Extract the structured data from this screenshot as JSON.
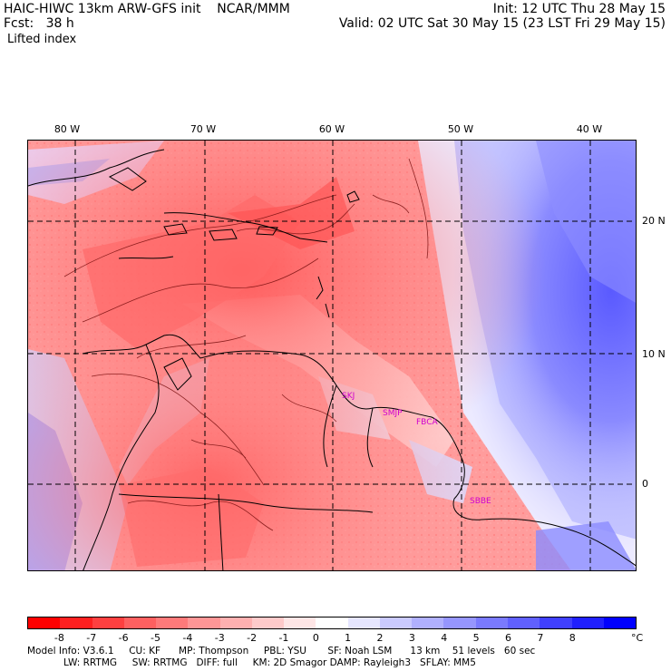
{
  "header": {
    "left_line1": "HAIC-HIWC 13km ARW-GFS init    NCAR/MMM",
    "left_line2": "Fcst:   38 h",
    "left_line3": "Lifted index",
    "right_line1": "Init: 12 UTC Thu 28 May 15",
    "right_line2": "Valid: 02 UTC Sat 30 May 15 (23 LST Fri 29 May 15)"
  },
  "map": {
    "lon_labels": [
      "80 W",
      "70 W",
      "60 W",
      "50 W",
      "40 W"
    ],
    "lat_labels": [
      "20 N",
      "10 N",
      "0"
    ],
    "stations": [
      "SKJ",
      "SMJP",
      "FBCA",
      "SBBE"
    ]
  },
  "colorbar": {
    "colors": [
      "#ff0000",
      "#ff2020",
      "#ff4040",
      "#ff6060",
      "#ff7a7a",
      "#ff9696",
      "#ffb0b0",
      "#ffcaca",
      "#ffe6e6",
      "#ffffff",
      "#e6e6ff",
      "#cacaff",
      "#b0b0ff",
      "#9696ff",
      "#7a7aff",
      "#6060ff",
      "#4040ff",
      "#2020ff",
      "#0000ff"
    ],
    "ticks": [
      "-8",
      "-7",
      "-6",
      "-5",
      "-4",
      "-3",
      "-2",
      "-1",
      "0",
      "1",
      "2",
      "3",
      "4",
      "5",
      "6",
      "7",
      "8"
    ],
    "unit": "°C"
  },
  "footer": {
    "line1": "Model Info: V3.6.1     CU: KF      MP: Thompson     PBL: YSU       SF: Noah LSM      13 km    51 levels   60 sec",
    "line2": "            LW: RRTMG     SW: RRTMG   DIFF: full     KM: 2D Smagor DAMP: Rayleigh3   SFLAY: MM5"
  }
}
